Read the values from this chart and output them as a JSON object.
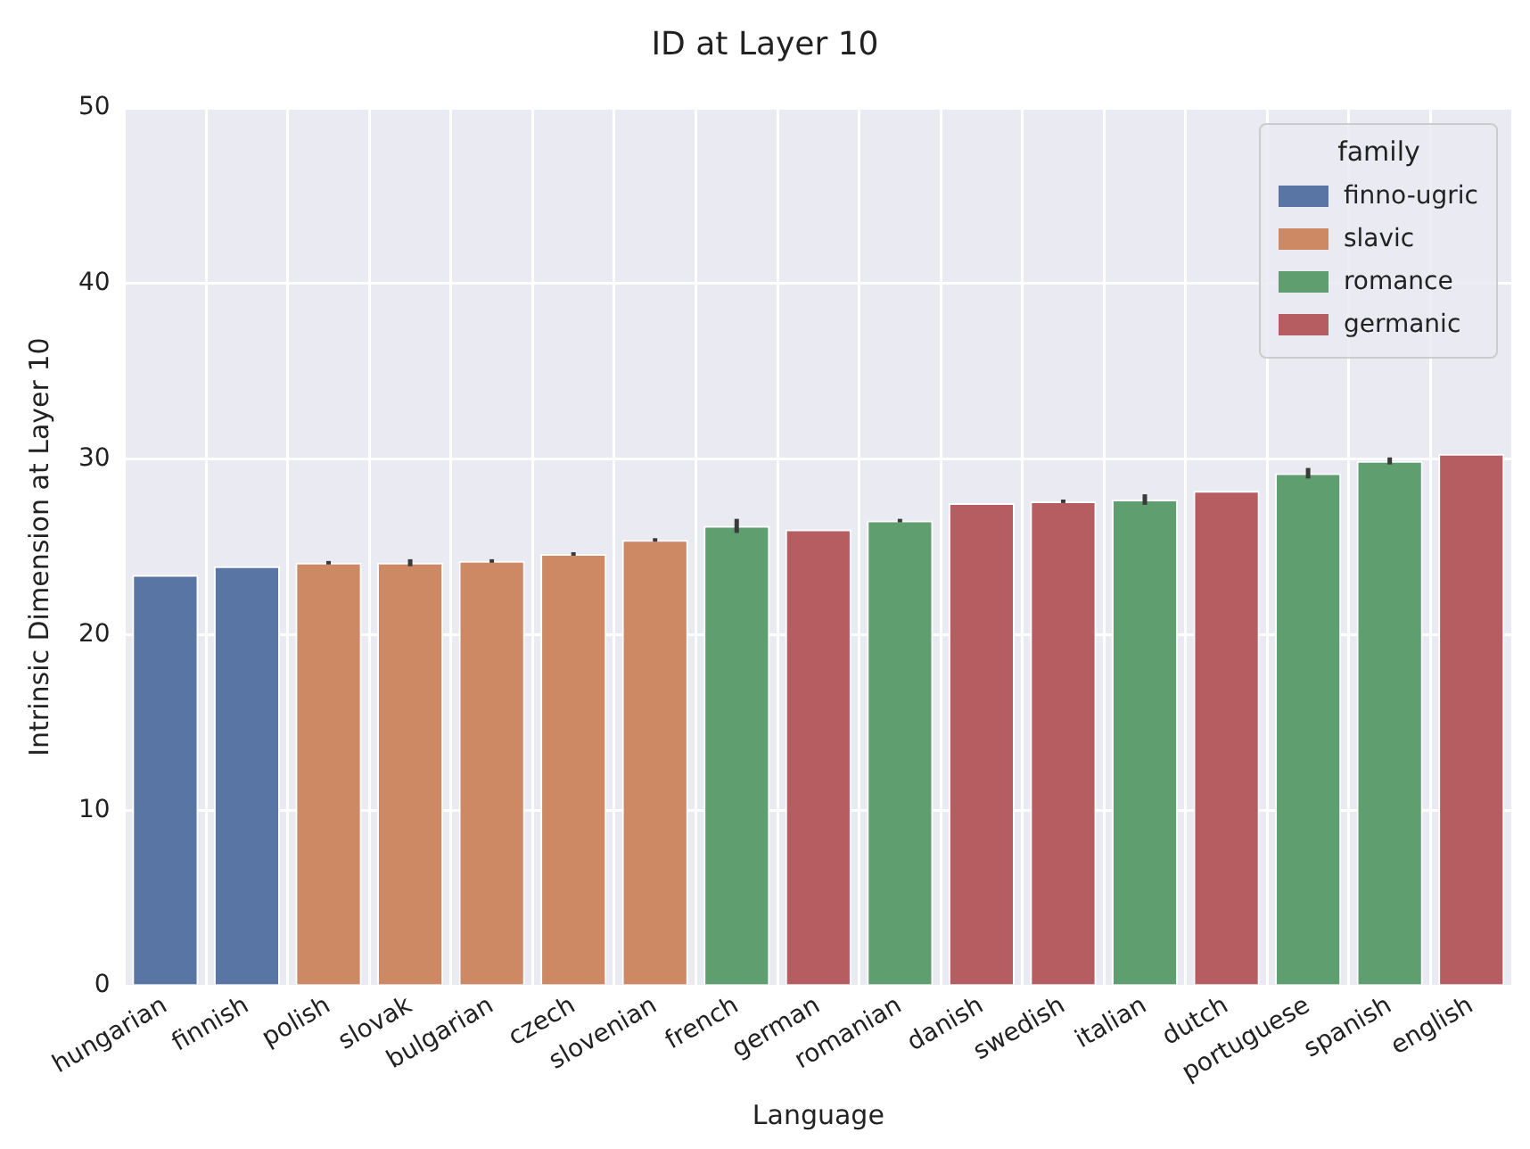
{
  "chart_data": {
    "type": "bar",
    "title": "ID at Layer 10",
    "xlabel": "Language",
    "ylabel": "Intrinsic Dimension at Layer 10",
    "legend_title": "family",
    "categories": [
      "hungarian",
      "finnish",
      "polish",
      "slovak",
      "bulgarian",
      "czech",
      "slovenian",
      "french",
      "german",
      "romanian",
      "danish",
      "swedish",
      "italian",
      "dutch",
      "portuguese",
      "spanish",
      "english"
    ],
    "series": [
      {
        "name": "finno-ugric",
        "color": "#5975a4",
        "values": [
          23.4,
          23.9,
          null,
          null,
          null,
          null,
          null,
          null,
          null,
          null,
          null,
          null,
          null,
          null,
          null,
          null,
          null
        ],
        "errors": [
          null,
          null,
          null,
          null,
          null,
          null,
          null,
          null,
          null,
          null,
          null,
          null,
          null,
          null,
          null,
          null,
          null
        ]
      },
      {
        "name": "slavic",
        "color": "#cc8963",
        "values": [
          null,
          null,
          24.1,
          24.1,
          24.2,
          24.6,
          25.4,
          null,
          null,
          null,
          null,
          null,
          null,
          null,
          null,
          null,
          null
        ],
        "errors": [
          null,
          null,
          0.1,
          0.2,
          0.1,
          0.1,
          0.1,
          null,
          null,
          null,
          null,
          null,
          null,
          null,
          null,
          null,
          null
        ]
      },
      {
        "name": "romance",
        "color": "#5f9e6e",
        "values": [
          null,
          null,
          null,
          null,
          null,
          null,
          null,
          26.2,
          null,
          26.5,
          null,
          null,
          27.7,
          null,
          29.2,
          29.9,
          null
        ],
        "errors": [
          null,
          null,
          null,
          null,
          null,
          null,
          null,
          0.4,
          null,
          0.1,
          null,
          null,
          0.3,
          null,
          0.3,
          0.2,
          null
        ]
      },
      {
        "name": "germanic",
        "color": "#b55d60",
        "values": [
          null,
          null,
          null,
          null,
          null,
          null,
          null,
          null,
          26.0,
          null,
          27.5,
          27.6,
          null,
          28.2,
          null,
          null,
          30.3
        ],
        "errors": [
          null,
          null,
          null,
          null,
          null,
          null,
          null,
          null,
          null,
          null,
          null,
          0.1,
          null,
          null,
          null,
          null,
          null
        ]
      }
    ],
    "ylim": [
      0,
      50
    ],
    "yticks": [
      0,
      10,
      20,
      30,
      40,
      50
    ],
    "grid": true,
    "legend": "top right"
  }
}
